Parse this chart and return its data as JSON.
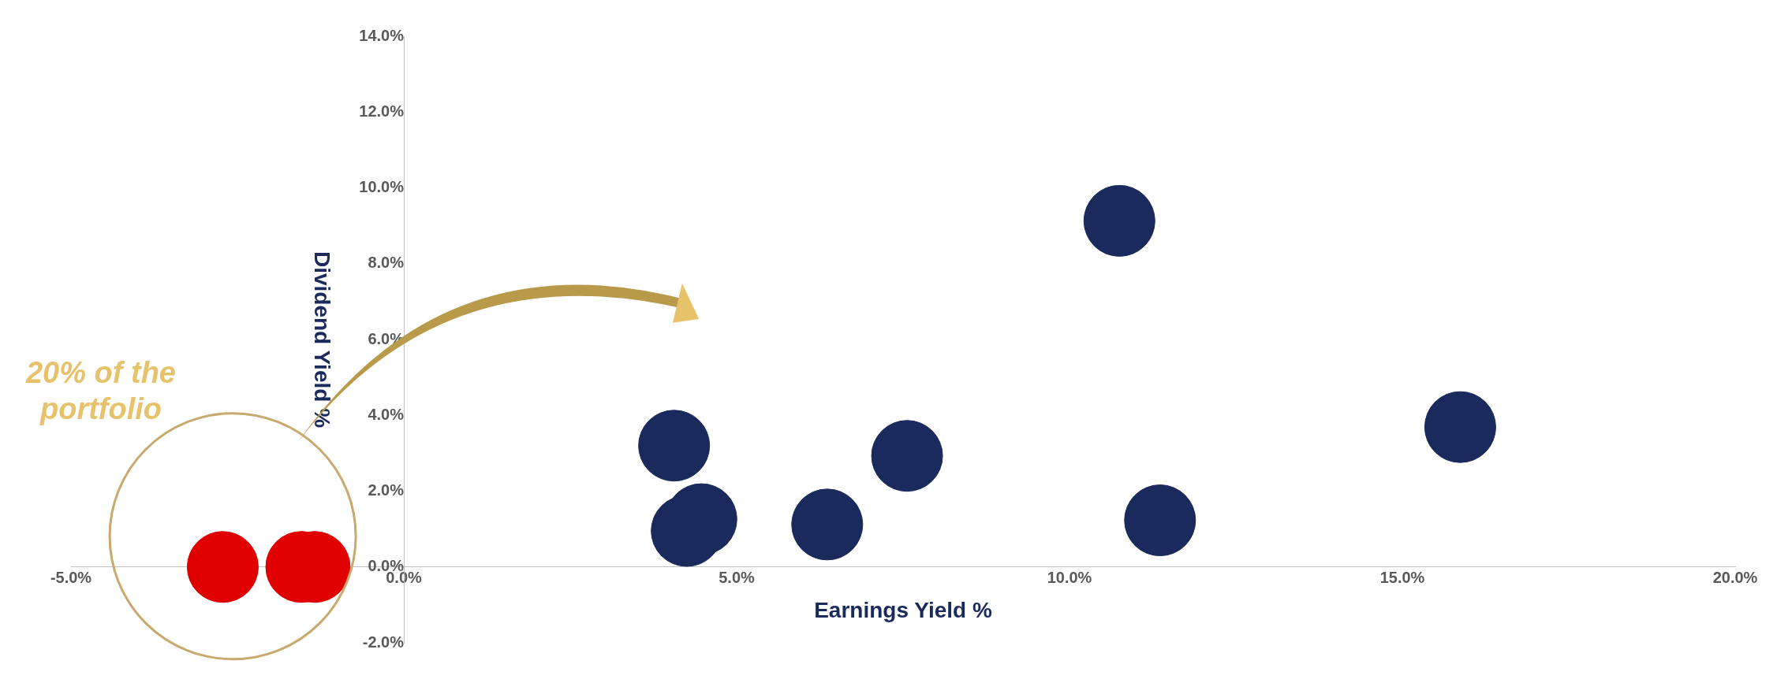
{
  "chart_data": {
    "type": "scatter",
    "xlabel": "Earnings Yield %",
    "ylabel": "Dividend Yield %",
    "annotations": [
      "20% of the portfolio"
    ],
    "series": [
      {
        "color": "#1b2a5c",
        "x": [
          4.06,
          4.25,
          4.47,
          6.36,
          7.56,
          10.75,
          11.36,
          15.87
        ],
        "values": [
          3.2,
          0.95,
          1.26,
          1.12,
          2.93,
          9.13,
          1.23,
          3.69
        ]
      },
      {
        "color": "#e00000",
        "x": [
          -2.72,
          -1.54,
          -1.34
        ],
        "values": [
          0,
          0,
          0
        ]
      }
    ],
    "marker": "circle",
    "grid": false,
    "xlim": [
      -5,
      20
    ],
    "xticks": [
      {
        "value": -5,
        "label": "-5.0%"
      },
      {
        "value": 0,
        "label": "0.0%"
      },
      {
        "value": 5,
        "label": "5.0%"
      },
      {
        "value": 10,
        "label": "10.0%"
      },
      {
        "value": 15,
        "label": "15.0%"
      },
      {
        "value": 20,
        "label": "20.0%"
      }
    ],
    "ylim": [
      -2,
      14
    ],
    "yticks": [
      {
        "value": -2,
        "label": "-2.0%"
      },
      {
        "value": 0,
        "label": "0.0%"
      },
      {
        "value": 2,
        "label": "2.0%"
      },
      {
        "value": 4,
        "label": "4.0%"
      },
      {
        "value": 6,
        "label": "6.0%"
      },
      {
        "value": 8,
        "label": "8.0%"
      },
      {
        "value": 10,
        "label": "10.0%"
      },
      {
        "value": 12,
        "label": "12.0%"
      },
      {
        "value": 14,
        "label": "14.0%"
      }
    ]
  }
}
